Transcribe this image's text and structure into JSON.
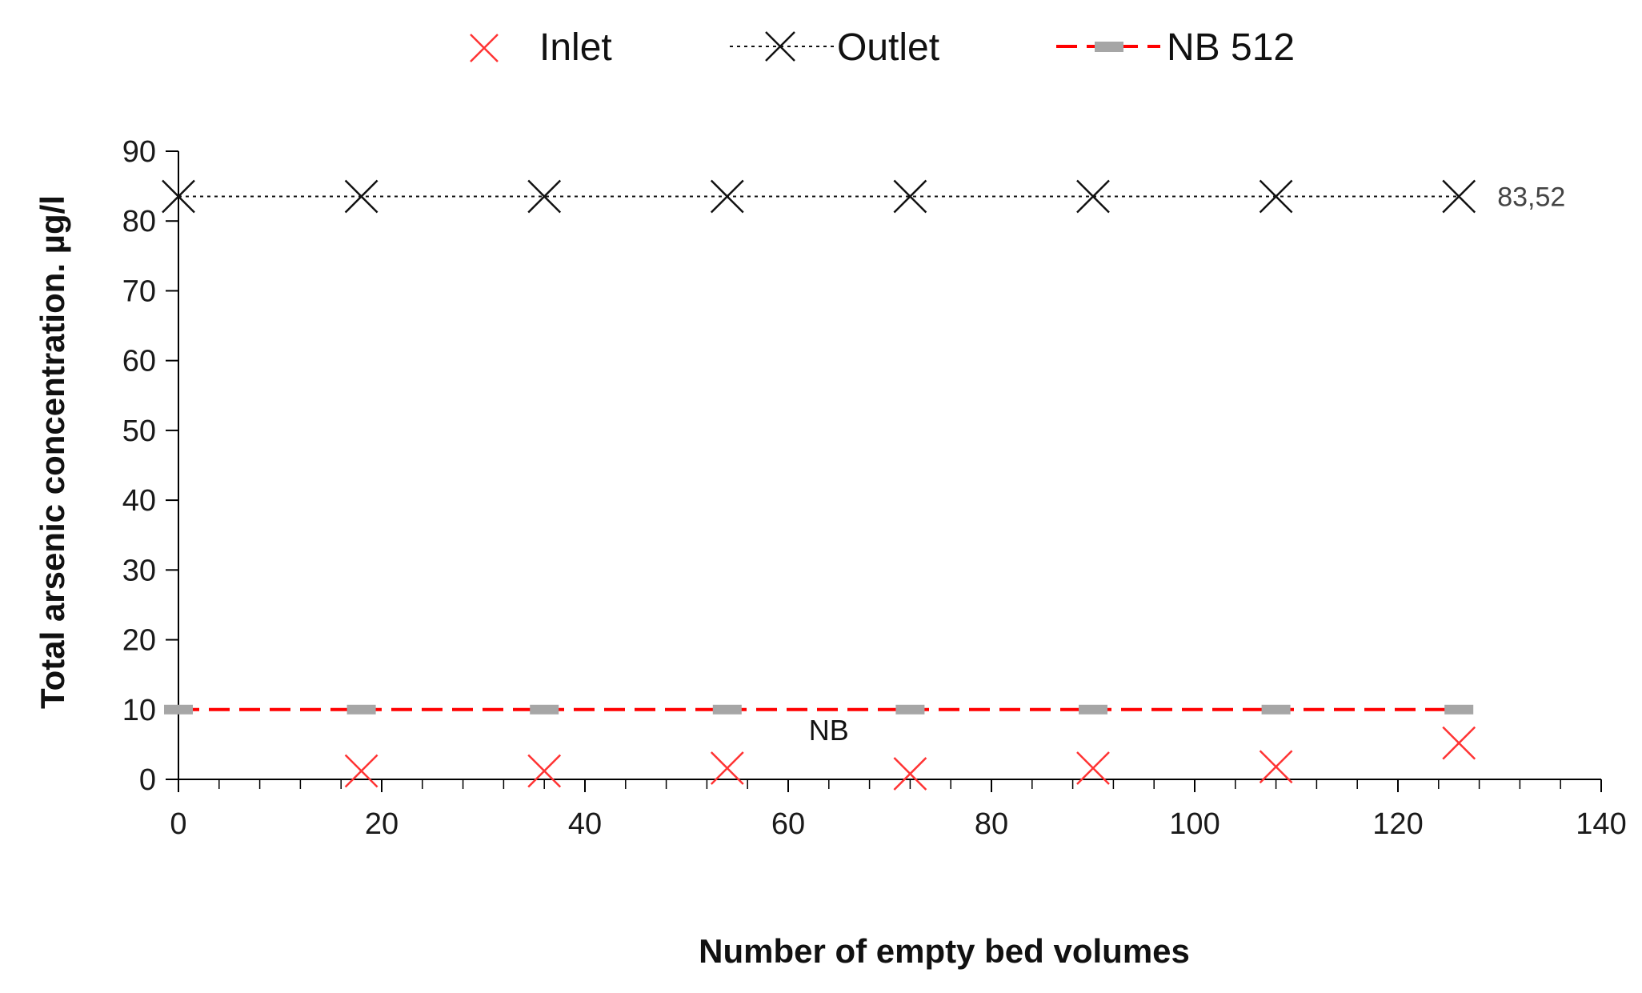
{
  "chart_data": {
    "type": "scatter",
    "xlabel": "Number of empty bed volumes",
    "ylabel": "Total arsenic concentration. µg/l",
    "xlim": [
      0,
      140
    ],
    "ylim": [
      0,
      90
    ],
    "x_ticks": [
      0,
      20,
      40,
      60,
      80,
      100,
      120,
      140
    ],
    "y_ticks": [
      0,
      10,
      20,
      30,
      40,
      50,
      60,
      70,
      80,
      90
    ],
    "x_tick_labels": [
      "0",
      "20",
      "40",
      "60",
      "80",
      "100",
      "120",
      "140"
    ],
    "y_tick_labels": [
      "0",
      "10",
      "20",
      "30",
      "40",
      "50",
      "60",
      "70",
      "80",
      "90"
    ],
    "grid": false,
    "legend_position": "top-center",
    "series": [
      {
        "name": "Inlet",
        "marker": "x",
        "color": "#ff3333",
        "line": "none",
        "points": [
          {
            "x": 18,
            "y": 1.2
          },
          {
            "x": 36,
            "y": 1.2
          },
          {
            "x": 54,
            "y": 1.6
          },
          {
            "x": 72,
            "y": 0.8
          },
          {
            "x": 90,
            "y": 1.6
          },
          {
            "x": 108,
            "y": 1.8
          },
          {
            "x": 126,
            "y": 5.2
          }
        ]
      },
      {
        "name": "Outlet",
        "marker": "x",
        "color": "#111111",
        "line": "dotted",
        "points": [
          {
            "x": 0,
            "y": 83.52
          },
          {
            "x": 18,
            "y": 83.52
          },
          {
            "x": 36,
            "y": 83.52
          },
          {
            "x": 54,
            "y": 83.52
          },
          {
            "x": 72,
            "y": 83.52
          },
          {
            "x": 90,
            "y": 83.52
          },
          {
            "x": 108,
            "y": 83.52
          },
          {
            "x": 126,
            "y": 83.52
          }
        ]
      },
      {
        "name": "NB 512",
        "marker": "dash",
        "color": "#ff0000",
        "marker_color": "#a6a6a6",
        "line": "dashed",
        "points": [
          {
            "x": 0,
            "y": 10
          },
          {
            "x": 18,
            "y": 10
          },
          {
            "x": 36,
            "y": 10
          },
          {
            "x": 54,
            "y": 10
          },
          {
            "x": 72,
            "y": 10
          },
          {
            "x": 90,
            "y": 10
          },
          {
            "x": 108,
            "y": 10
          },
          {
            "x": 126,
            "y": 10
          }
        ]
      }
    ],
    "annotations": [
      {
        "text": "83,52",
        "x": 126,
        "y": 83.52,
        "series": "Outlet"
      },
      {
        "text": "NB",
        "x": 64,
        "y": 7,
        "series": "NB 512"
      }
    ]
  }
}
